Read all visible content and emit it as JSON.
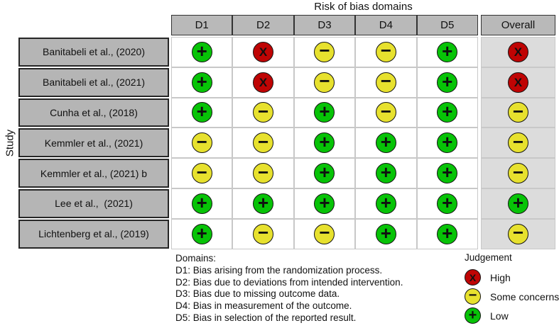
{
  "chart_data": {
    "type": "heatmap",
    "title": "Risk of bias domains",
    "ylabel": "Study",
    "columns": [
      "D1",
      "D2",
      "D3",
      "D4",
      "D5",
      "Overall"
    ],
    "rows": [
      {
        "study": "Banitabeli et al., (2020)",
        "judgements": [
          "low",
          "high",
          "concerns",
          "concerns",
          "low",
          "high"
        ]
      },
      {
        "study": "Banitabeli et al., (2021)",
        "judgements": [
          "low",
          "high",
          "concerns",
          "concerns",
          "low",
          "high"
        ]
      },
      {
        "study": "Cunha et al., (2018)",
        "judgements": [
          "low",
          "concerns",
          "low",
          "concerns",
          "low",
          "concerns"
        ]
      },
      {
        "study": "Kemmler et al., (2021)",
        "judgements": [
          "concerns",
          "concerns",
          "low",
          "low",
          "low",
          "concerns"
        ]
      },
      {
        "study": "Kemmler et al., (2021) b",
        "judgements": [
          "concerns",
          "concerns",
          "low",
          "low",
          "low",
          "concerns"
        ]
      },
      {
        "study": "Lee et al.,  (2021)",
        "judgements": [
          "low",
          "low",
          "low",
          "low",
          "low",
          "low"
        ]
      },
      {
        "study": "Lichtenberg et al., (2019)",
        "judgements": [
          "low",
          "concerns",
          "concerns",
          "low",
          "low",
          "concerns"
        ]
      }
    ],
    "judgement_styles": {
      "high": {
        "symbol": "X",
        "color": "#bf0404",
        "label": "High"
      },
      "concerns": {
        "symbol": "−",
        "color": "#e7e12e",
        "label": "Some concerns"
      },
      "low": {
        "symbol": "+",
        "color": "#07c307",
        "label": "Low"
      }
    },
    "legend": {
      "title": "Judgement",
      "items": [
        {
          "key": "high",
          "label": "High"
        },
        {
          "key": "concerns",
          "label": "Some concerns"
        },
        {
          "key": "low",
          "label": "Low"
        }
      ]
    },
    "footnote": {
      "heading": "Domains:",
      "lines": [
        "D1: Bias arising from the randomization process.",
        "D2: Bias due to deviations from intended intervention.",
        "D3: Bias due to missing outcome data.",
        "D4: Bias in measurement of the outcome.",
        "D5: Bias in selection of the reported result."
      ]
    }
  }
}
